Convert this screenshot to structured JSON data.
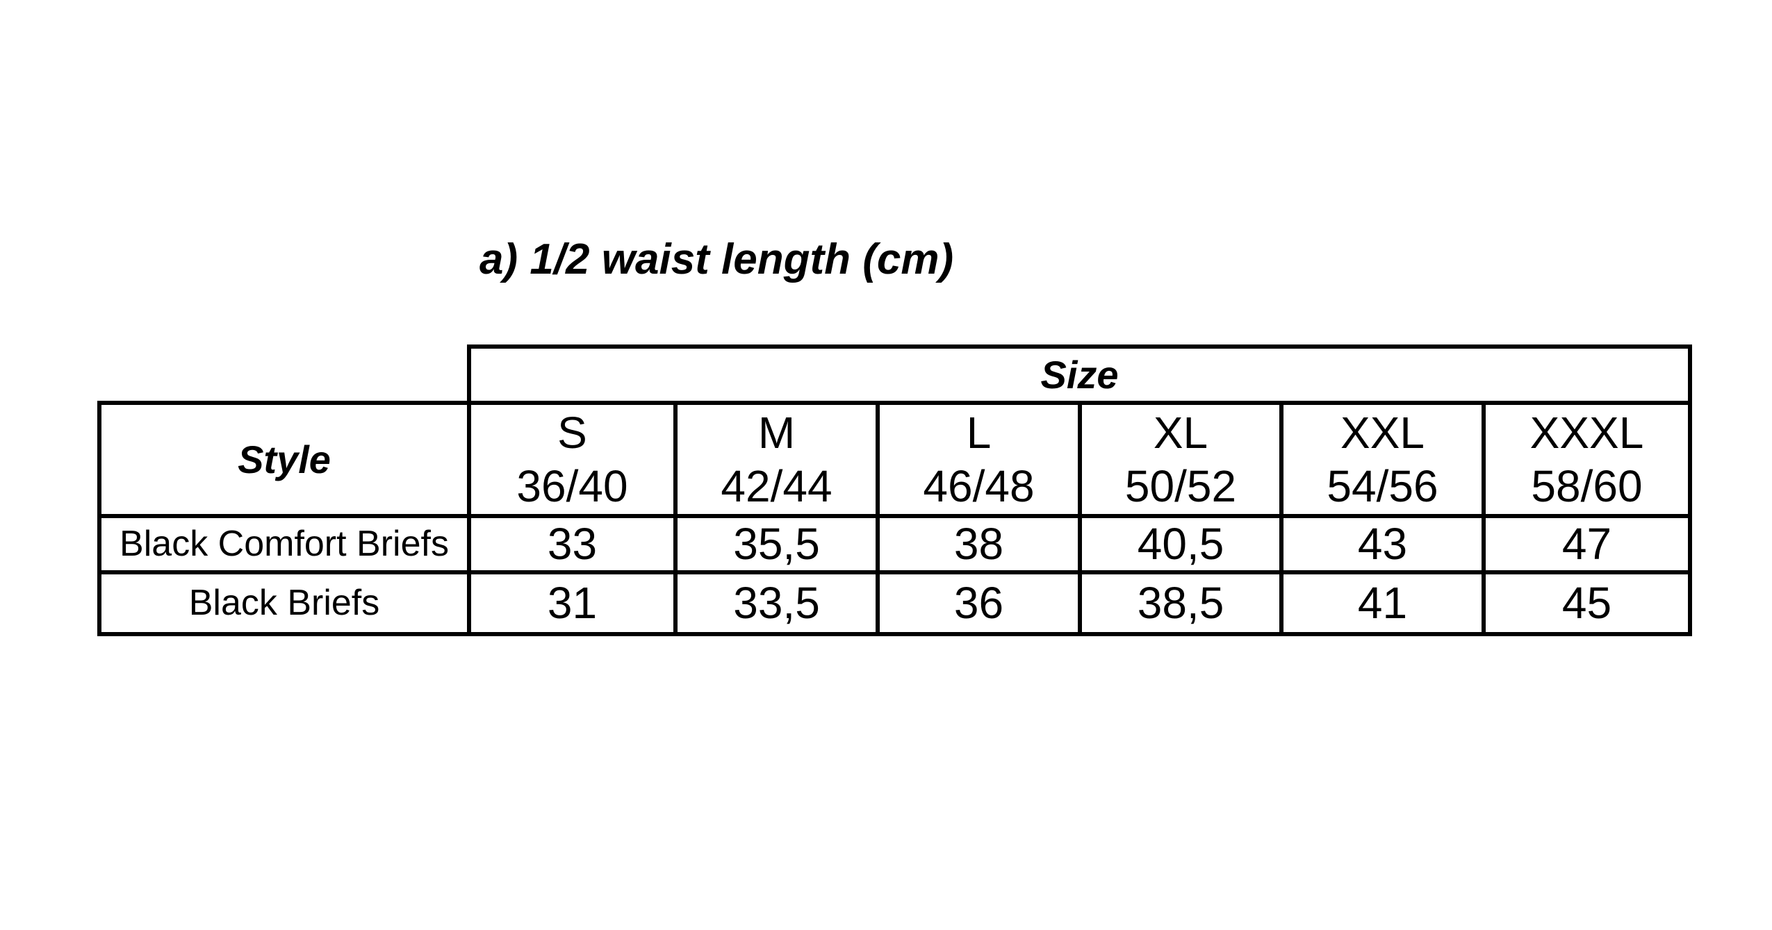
{
  "title": "a) 1/2 waist length (cm)",
  "table": {
    "size_header": "Size",
    "style_header": "Style",
    "sizes": [
      {
        "label": "S",
        "range": "36/40"
      },
      {
        "label": "M",
        "range": "42/44"
      },
      {
        "label": "L",
        "range": "46/48"
      },
      {
        "label": "XL",
        "range": "50/52"
      },
      {
        "label": "XXL",
        "range": "54/56"
      },
      {
        "label": "XXXL",
        "range": "58/60"
      }
    ],
    "rows": [
      {
        "style": "Black Comfort Briefs",
        "values": [
          "33",
          "35,5",
          "38",
          "40,5",
          "43",
          "47"
        ]
      },
      {
        "style": "Black Briefs",
        "values": [
          "31",
          "33,5",
          "36",
          "38,5",
          "41",
          "45"
        ]
      }
    ]
  }
}
